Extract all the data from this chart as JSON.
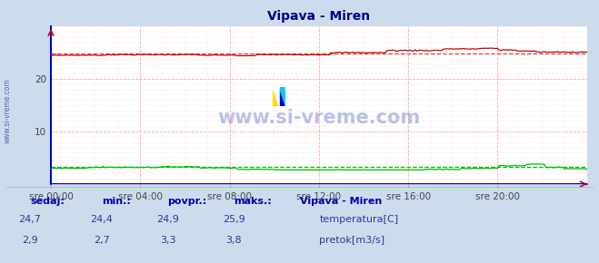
{
  "title": "Vipava - Miren",
  "bg_color": "#ccdcec",
  "plot_bg_color": "#ffffff",
  "grid_color": "#ffaaaa",
  "grid_dot_color": "#ffcccc",
  "x_labels": [
    "sre 00:00",
    "sre 04:00",
    "sre 08:00",
    "sre 12:00",
    "sre 16:00",
    "sre 20:00"
  ],
  "x_ticks_norm": [
    0.0,
    0.1667,
    0.3333,
    0.5,
    0.6667,
    0.8333
  ],
  "y_ticks": [
    10,
    20
  ],
  "ylim": [
    0,
    30
  ],
  "temp_color": "#cc0000",
  "flow_color": "#00bb00",
  "height_color": "#0000ff",
  "dashed_color": "#dd4444",
  "dashed_flow_color": "#00bb00",
  "watermark": "www.si-vreme.com",
  "watermark_color": "#1a3aaa",
  "legend_title": "Vipava - Miren",
  "legend_labels": [
    "temperatura[C]",
    "pretok[m3/s]"
  ],
  "legend_colors": [
    "#cc0000",
    "#00bb00"
  ],
  "table_headers": [
    "sedaj:",
    "min.:",
    "povpr.:",
    "maks.:"
  ],
  "table_temp": [
    "24,7",
    "24,4",
    "24,9",
    "25,9"
  ],
  "table_flow": [
    "2,9",
    "2,7",
    "3,3",
    "3,8"
  ],
  "temp_avg": 24.9,
  "flow_avg": 3.3,
  "ylabel_rotated": "www.si-vreme.com"
}
